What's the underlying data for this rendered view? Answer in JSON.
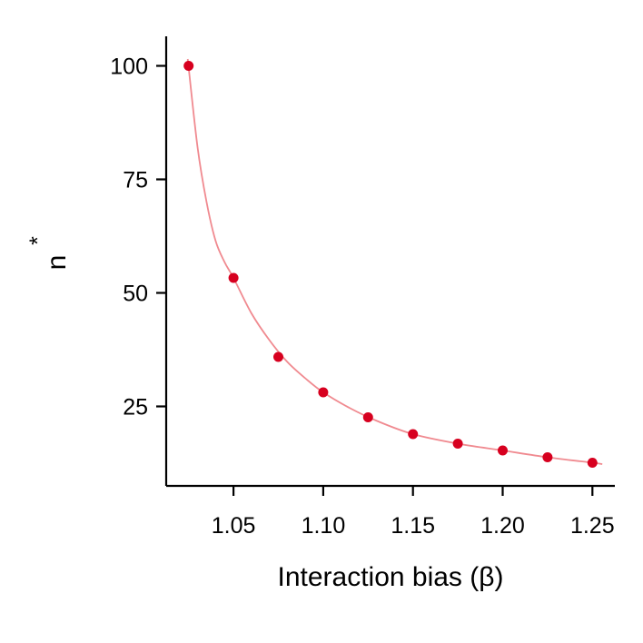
{
  "chart_data": {
    "type": "scatter",
    "xlabel": "Interaction bias (β)",
    "ylabel": "n",
    "ylabel_superscript": "*",
    "xlim": [
      1.0125,
      1.2625
    ],
    "ylim": [
      7.5,
      106.5
    ],
    "xticks": [
      1.05,
      1.1,
      1.15,
      1.2,
      1.25
    ],
    "xtick_labels": [
      "1.05",
      "1.10",
      "1.15",
      "1.20",
      "1.25"
    ],
    "yticks": [
      25,
      50,
      75,
      100
    ],
    "ytick_labels": [
      "25",
      "50",
      "75",
      "100"
    ],
    "grid": false,
    "legend": "none",
    "point_color": "#d7001f",
    "curve_color": "#f08a90",
    "points": {
      "x": [
        1.025,
        1.05,
        1.075,
        1.1,
        1.125,
        1.15,
        1.175,
        1.2,
        1.225,
        1.25
      ],
      "y": [
        100,
        53.3,
        35.9,
        28.1,
        22.6,
        18.9,
        16.8,
        15.3,
        13.8,
        12.6
      ]
    },
    "fit_curve": {
      "x": [
        1.0245,
        1.03,
        1.035,
        1.04,
        1.045,
        1.05,
        1.06,
        1.07,
        1.08,
        1.09,
        1.1,
        1.115,
        1.13,
        1.15,
        1.175,
        1.2,
        1.225,
        1.25,
        1.2555
      ],
      "y": [
        101.5,
        82,
        70,
        61.5,
        56.8,
        53.3,
        45.5,
        39.6,
        34.8,
        31.2,
        28.1,
        24.6,
        21.8,
        18.9,
        16.8,
        15.3,
        13.8,
        12.6,
        12.3
      ]
    }
  }
}
